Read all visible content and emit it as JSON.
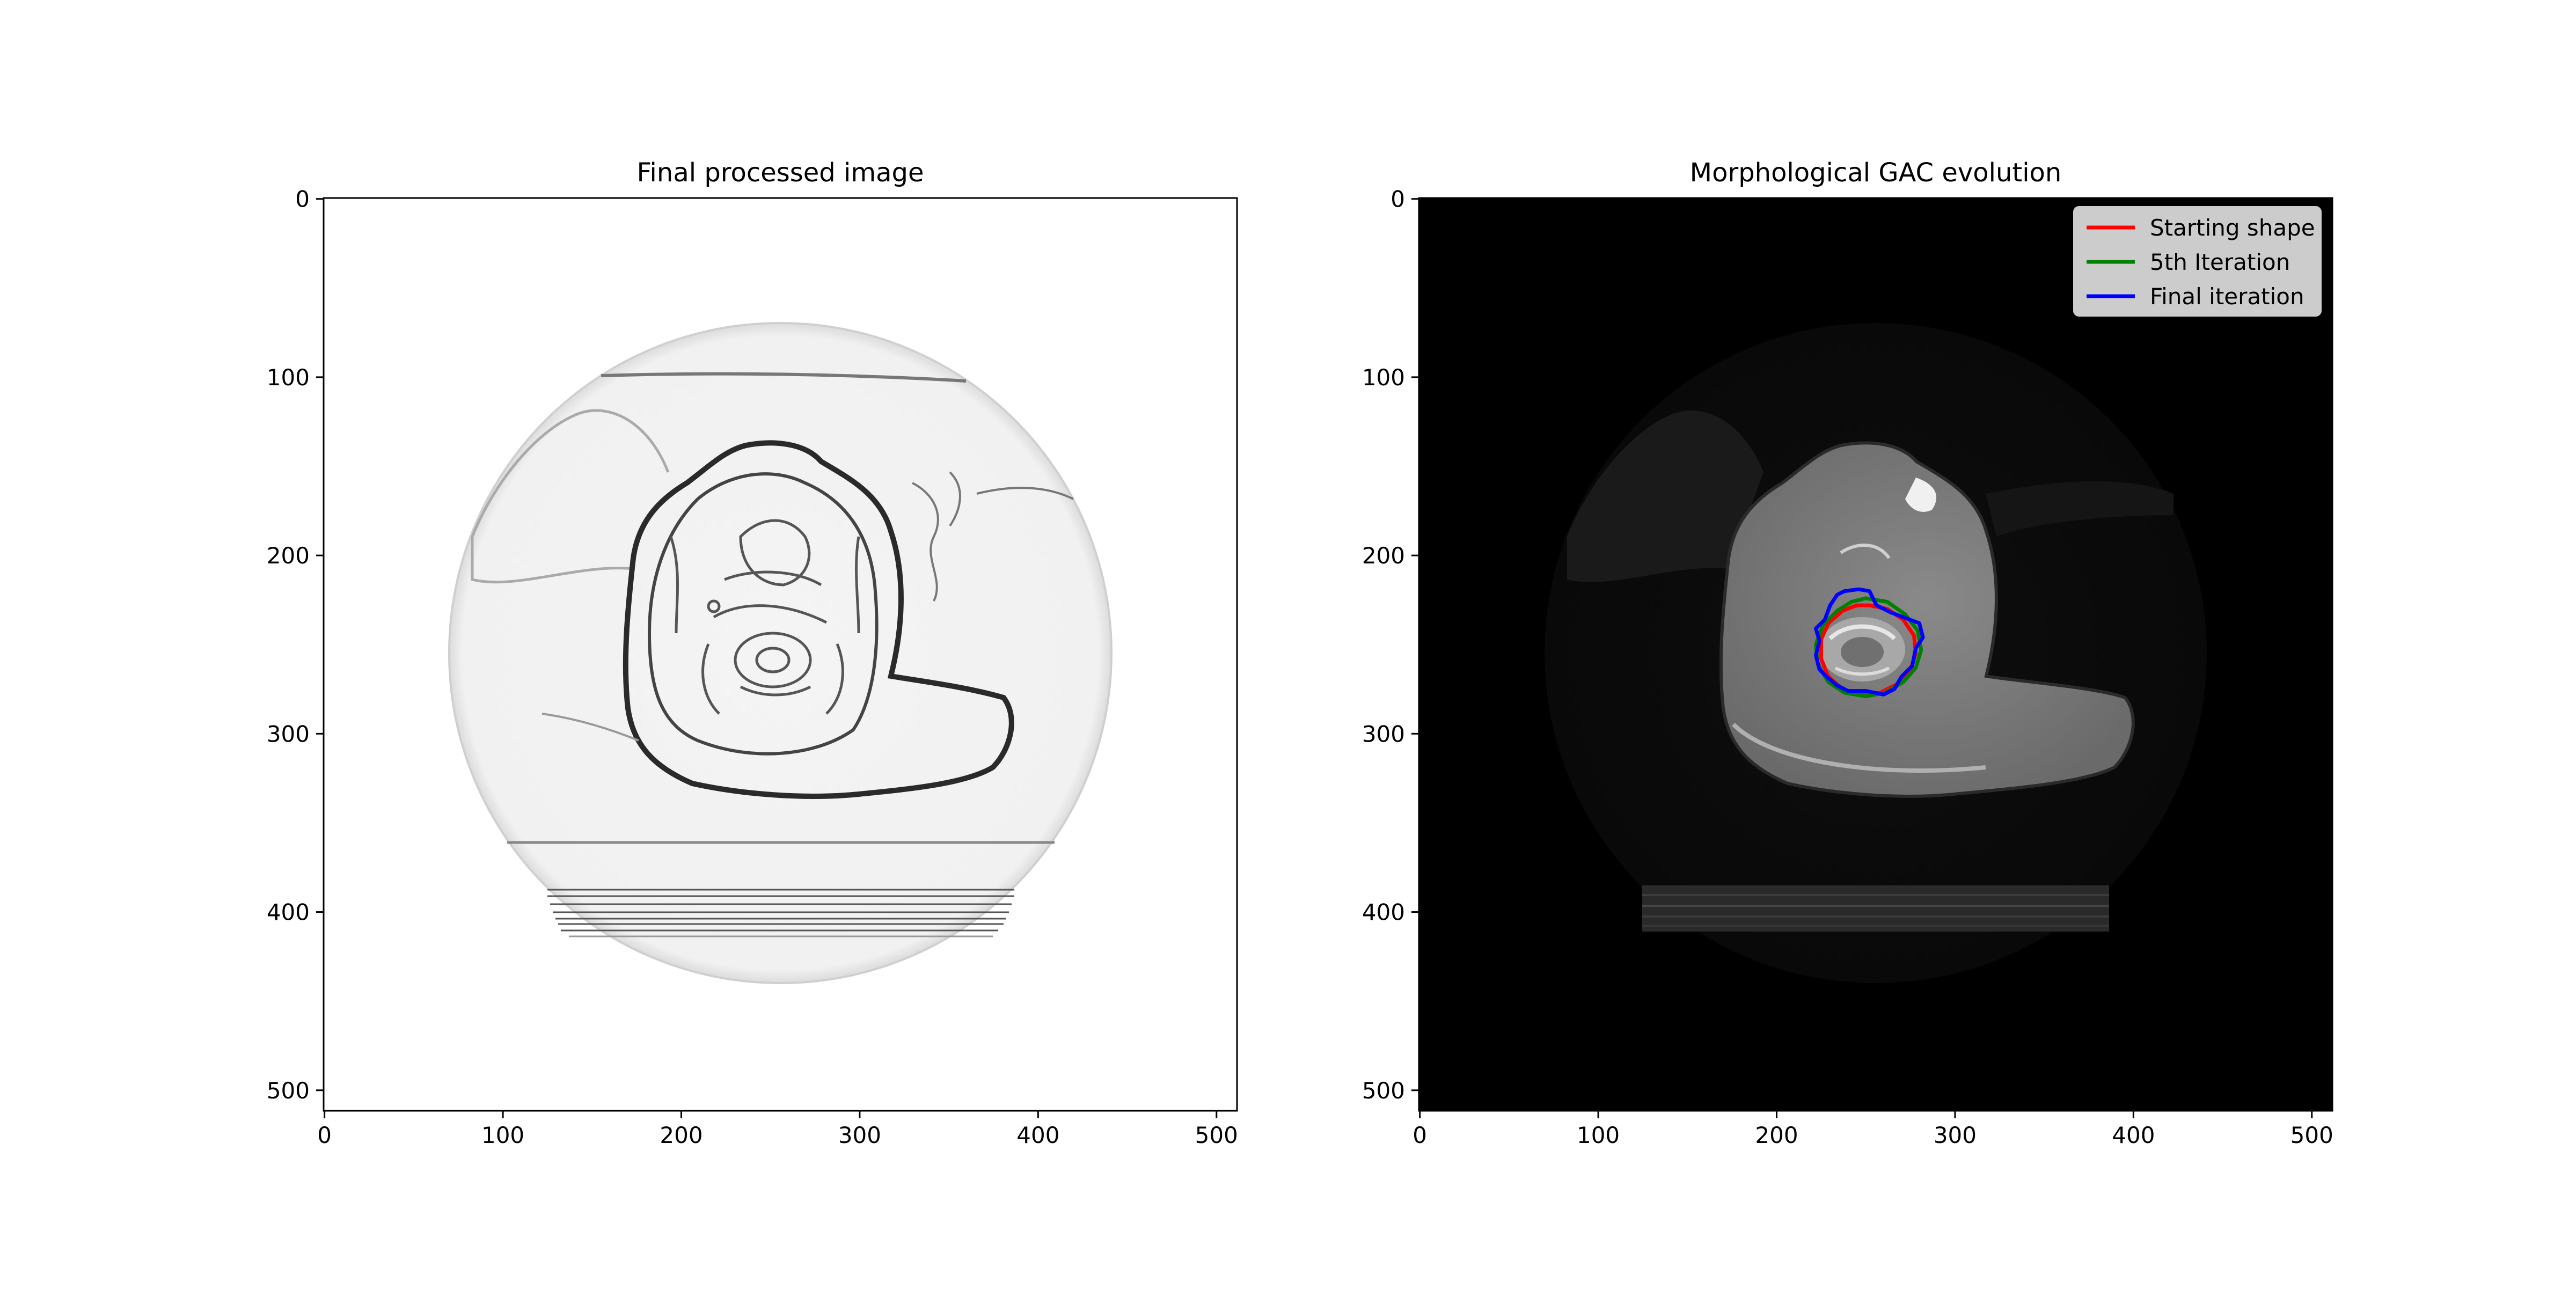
{
  "figure": {
    "panels": [
      {
        "title": "Final processed image",
        "image_description": "edge map",
        "colors": {
          "background": "#ffffff"
        }
      },
      {
        "title": "Morphological GAC evolution",
        "image_description": "CT slice",
        "colors": {
          "background": "#000000"
        }
      }
    ]
  },
  "chart_data": [
    {
      "type": "heatmap",
      "title": "Final processed image",
      "xlabel": "",
      "ylabel": "",
      "xlim": [
        0,
        511
      ],
      "ylim": [
        511,
        0
      ],
      "xticks": [
        0,
        100,
        200,
        300,
        400,
        500
      ],
      "yticks": [
        0,
        100,
        200,
        300,
        400,
        500
      ],
      "colormap": "gray",
      "grid": false
    },
    {
      "type": "heatmap",
      "title": "Morphological GAC evolution",
      "xlabel": "",
      "ylabel": "",
      "xlim": [
        0,
        511
      ],
      "ylim": [
        511,
        0
      ],
      "xticks": [
        0,
        100,
        200,
        300,
        400,
        500
      ],
      "yticks": [
        0,
        100,
        200,
        300,
        400,
        500
      ],
      "colormap": "gray",
      "grid": false,
      "legend": {
        "position": "top-right"
      },
      "series": [
        {
          "name": "Starting shape",
          "color": "#ff0000",
          "points": [
            [
              252,
              228
            ],
            [
              262,
              230
            ],
            [
              271,
              236
            ],
            [
              277,
              245
            ],
            [
              278,
              255
            ],
            [
              275,
              264
            ],
            [
              268,
              272
            ],
            [
              258,
              277
            ],
            [
              247,
              278
            ],
            [
              237,
              275
            ],
            [
              229,
              268
            ],
            [
              225,
              258
            ],
            [
              225,
              247
            ],
            [
              229,
              238
            ],
            [
              237,
              231
            ],
            [
              245,
              228
            ]
          ]
        },
        {
          "name": "5th Iteration",
          "color": "#008000",
          "points": [
            [
              250,
              224
            ],
            [
              262,
              226
            ],
            [
              272,
              233
            ],
            [
              279,
              242
            ],
            [
              281,
              253
            ],
            [
              278,
              263
            ],
            [
              271,
              271
            ],
            [
              261,
              277
            ],
            [
              250,
              279
            ],
            [
              238,
              277
            ],
            [
              229,
              271
            ],
            [
              223,
              261
            ],
            [
              222,
              250
            ],
            [
              226,
              239
            ],
            [
              234,
              231
            ],
            [
              242,
              226
            ]
          ]
        },
        {
          "name": "Final iteration",
          "color": "#0000ff",
          "points": [
            [
              238,
              220
            ],
            [
              246,
              219
            ],
            [
              252,
              220
            ],
            [
              256,
              228
            ],
            [
              264,
              232
            ],
            [
              272,
              235
            ],
            [
              280,
              238
            ],
            [
              282,
              246
            ],
            [
              278,
              252
            ],
            [
              276,
              262
            ],
            [
              270,
              268
            ],
            [
              266,
              275
            ],
            [
              260,
              278
            ],
            [
              250,
              276
            ],
            [
              240,
              276
            ],
            [
              234,
              273
            ],
            [
              228,
              268
            ],
            [
              224,
              264
            ],
            [
              222,
              256
            ],
            [
              224,
              248
            ],
            [
              222,
              241
            ],
            [
              227,
              236
            ],
            [
              230,
              228
            ],
            [
              234,
              222
            ]
          ]
        }
      ]
    }
  ]
}
